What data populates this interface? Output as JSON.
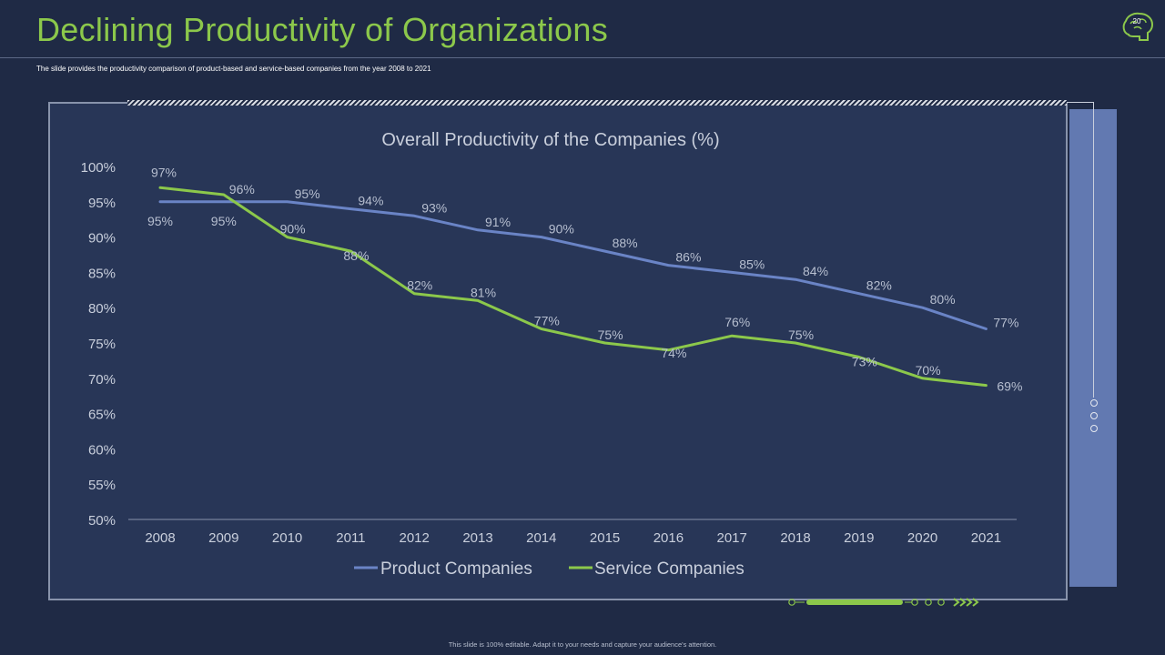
{
  "slide": {
    "title": "Declining Productivity of Organizations",
    "subtitle": "The slide provides the productivity comparison of product-based and service-based companies from the year 2008 to 2021",
    "page_number": "20",
    "footer": "This slide is 100% editable. Adapt it to your needs and capture your audience's attention."
  },
  "colors": {
    "title": "#8cc84b",
    "product_series": "#6a84c6",
    "service_series": "#8cc84b",
    "background": "#1f2a45",
    "chart_bg": "#283657",
    "side_panel": "#6279b1"
  },
  "icons": {
    "logo": "brain-head-icon"
  },
  "chart_data": {
    "type": "line",
    "title": "Overall Productivity of the Companies (%)",
    "xlabel": "",
    "ylabel": "",
    "categories": [
      "2008",
      "2009",
      "2010",
      "2011",
      "2012",
      "2013",
      "2014",
      "2015",
      "2016",
      "2017",
      "2018",
      "2019",
      "2020",
      "2021"
    ],
    "ylim": [
      50,
      100
    ],
    "yticks": [
      "50%",
      "55%",
      "60%",
      "65%",
      "70%",
      "75%",
      "80%",
      "85%",
      "90%",
      "95%",
      "100%"
    ],
    "ytick_values": [
      50,
      55,
      60,
      65,
      70,
      75,
      80,
      85,
      90,
      95,
      100
    ],
    "grid": false,
    "legend_position": "bottom",
    "series": [
      {
        "name": "Product Companies",
        "values": [
          95,
          95,
          95,
          94,
          93,
          91,
          90,
          88,
          86,
          85,
          84,
          82,
          80,
          77
        ],
        "data_labels": [
          "95%",
          "95%",
          "95%",
          "94%",
          "93%",
          "91%",
          "90%",
          "88%",
          "86%",
          "85%",
          "84%",
          "82%",
          "80%",
          "77%"
        ]
      },
      {
        "name": "Service Companies",
        "values": [
          97,
          96,
          90,
          88,
          82,
          81,
          77,
          75,
          74,
          76,
          75,
          73,
          70,
          69
        ],
        "data_labels": [
          "97%",
          "96%",
          "90%",
          "88%",
          "82%",
          "81%",
          "77%",
          "75%",
          "74%",
          "76%",
          "75%",
          "73%",
          "70%",
          "69%"
        ]
      }
    ]
  }
}
